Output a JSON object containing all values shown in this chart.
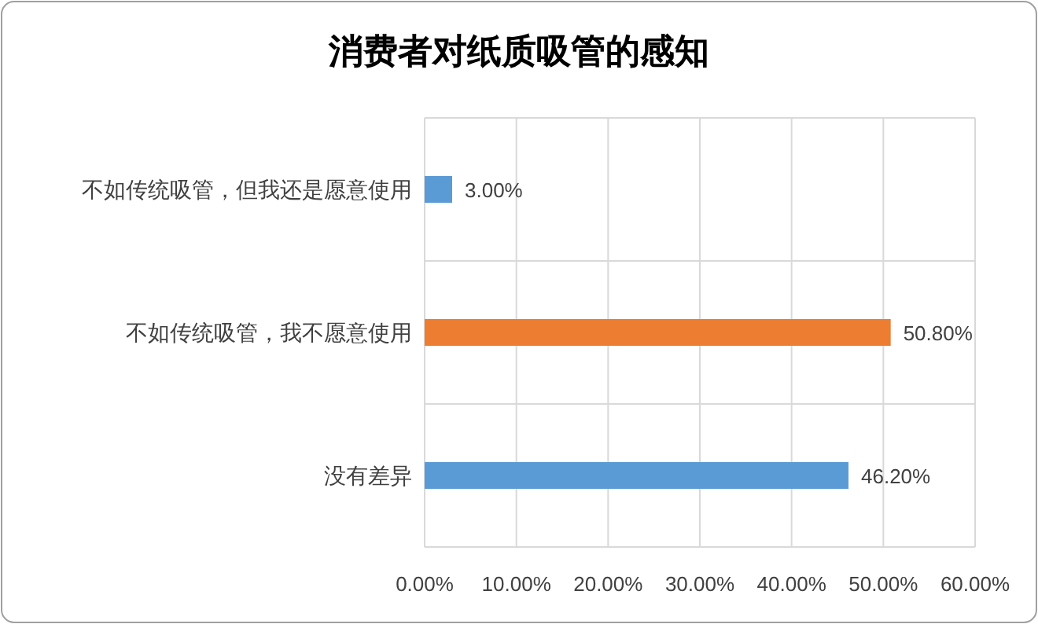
{
  "chart_data": {
    "type": "bar",
    "orientation": "horizontal",
    "title": "消费者对纸质吸管的感知",
    "categories": [
      "不如传统吸管，但我还是愿意使用",
      "不如传统吸管，我不愿意使用",
      "没有差异"
    ],
    "values": [
      3.0,
      50.8,
      46.2
    ],
    "colors": [
      "#5b9bd5",
      "#ed7d31",
      "#5b9bd5"
    ],
    "value_labels": [
      "3.00%",
      "50.80%",
      "46.20%"
    ],
    "xlim": [
      0,
      60
    ],
    "xticks": [
      {
        "value": 0,
        "label": "0.00%"
      },
      {
        "value": 10,
        "label": "10.00%"
      },
      {
        "value": 20,
        "label": "20.00%"
      },
      {
        "value": 30,
        "label": "30.00%"
      },
      {
        "value": 40,
        "label": "40.00%"
      },
      {
        "value": 50,
        "label": "50.00%"
      },
      {
        "value": 60,
        "label": "60.00%"
      }
    ],
    "grid": true
  }
}
